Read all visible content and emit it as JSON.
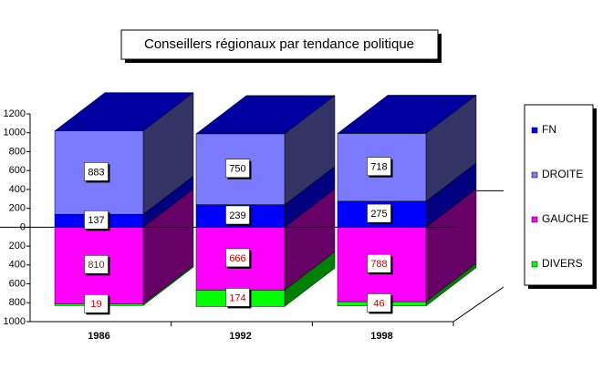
{
  "chart_data": {
    "type": "bar3d_stacked",
    "title": "Conseillers régionaux par tendance politique",
    "categories": [
      "1986",
      "1992",
      "1998"
    ],
    "series": [
      {
        "name": "FN",
        "color": "#0000ff",
        "side": "#000080",
        "values": [
          137,
          239,
          275
        ],
        "label_color": "#000000"
      },
      {
        "name": "DROITE",
        "color": "#7b7bff",
        "side": "#333366",
        "values": [
          883,
          750,
          718
        ],
        "label_color": "#000000"
      },
      {
        "name": "GAUCHE",
        "color": "#ff00ff",
        "side": "#660066",
        "values": [
          -810,
          -666,
          -788
        ],
        "value_labels": [
          "810",
          "666",
          "788"
        ],
        "label_color": "#cc0000"
      },
      {
        "name": "DIVERS",
        "color": "#00ff00",
        "side": "#008000",
        "values": [
          -19,
          -174,
          -46
        ],
        "value_labels": [
          "19",
          "174",
          "46"
        ],
        "label_color": "#cc0000"
      }
    ],
    "ylim": [
      -1000,
      1200
    ],
    "yticks": [
      {
        "value": -1000,
        "label": "1000"
      },
      {
        "value": -800,
        "label": "800"
      },
      {
        "value": -600,
        "label": "600"
      },
      {
        "value": -400,
        "label": "400"
      },
      {
        "value": -200,
        "label": "200"
      },
      0,
      200,
      400,
      600,
      800,
      1000,
      1200
    ]
  }
}
